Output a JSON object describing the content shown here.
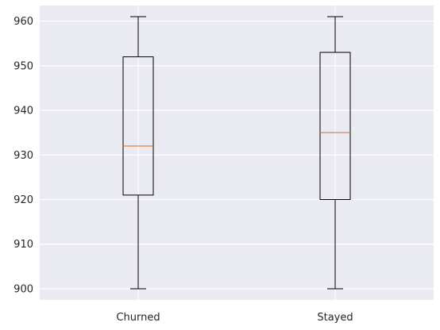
{
  "chart_data": {
    "type": "boxplot",
    "title": "",
    "xlabel": "",
    "ylabel": "",
    "categories": [
      "Churned",
      "Stayed"
    ],
    "boxes": [
      {
        "category": "Churned",
        "min": 900,
        "q1": 921,
        "median": 932,
        "q3": 952,
        "max": 961
      },
      {
        "category": "Stayed",
        "min": 900,
        "q1": 920,
        "median": 935,
        "q3": 953,
        "max": 961
      }
    ],
    "ylim": [
      897.5,
      963.5
    ],
    "yticks": [
      900,
      910,
      920,
      930,
      940,
      950,
      960
    ],
    "grid": true,
    "colors": {
      "plot_background": "#eaeaf2",
      "grid": "#ffffff",
      "box_edge": "#000000",
      "median": "#e07b39"
    }
  }
}
